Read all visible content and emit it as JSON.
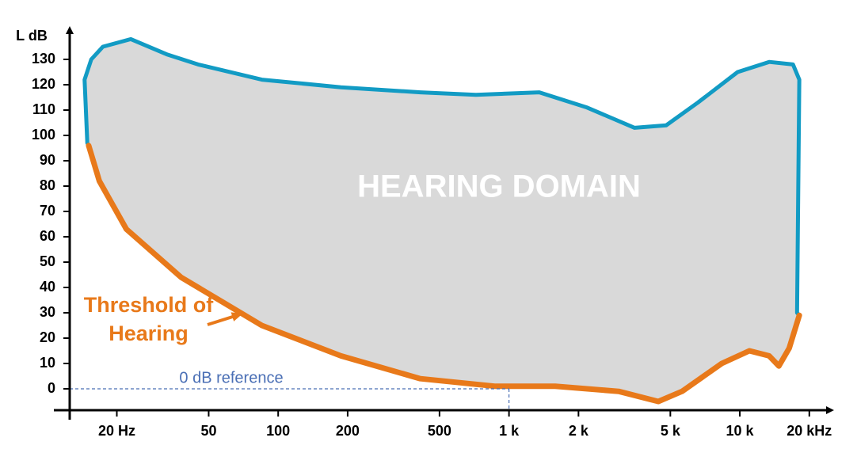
{
  "chart_data": {
    "type": "area",
    "ylabel": "L dB",
    "annotations": {
      "domain": "HEARING DOMAIN",
      "reference": "0 dB reference"
    },
    "xscale": "log",
    "xlim": [
      12.5,
      26000
    ],
    "ylim": [
      -8,
      142
    ],
    "xticks": [
      {
        "value": 20,
        "label": "20 Hz"
      },
      50,
      100,
      200,
      500,
      {
        "value": 1000,
        "label": "1 k"
      },
      {
        "value": 2000,
        "label": "2 k"
      },
      {
        "value": 5000,
        "label": "5 k"
      },
      {
        "value": 10000,
        "label": "10 k"
      },
      {
        "value": 20000,
        "label": "20 kHz"
      }
    ],
    "yticks": [
      0,
      10,
      20,
      30,
      40,
      50,
      60,
      70,
      80,
      90,
      100,
      110,
      120,
      130
    ],
    "reference": {
      "x": 1000,
      "y": 0
    },
    "fill": "#d9d9d9",
    "series": [
      {
        "color": "#129bc4",
        "x": [
          14.9,
          14.5,
          15.5,
          17.4,
          23,
          32.9,
          45,
          85,
          187,
          413,
          719,
          1353,
          2178,
          3500,
          4800,
          6590,
          9780,
          13400,
          17000,
          18100,
          17700
        ],
        "values": [
          97,
          122,
          130,
          135,
          138,
          132,
          128,
          122,
          119,
          117,
          116,
          117,
          111,
          103,
          104,
          113,
          125,
          129,
          128,
          122,
          30
        ]
      },
      {
        "name": "Threshold of Hearing",
        "color": "#e8791a",
        "x": [
          15.1,
          16.8,
          22,
          38,
          85,
          187,
          413,
          875,
          1585,
          2985,
          4435,
          5620,
          8350,
          11000,
          13400,
          14760,
          16360,
          18100
        ],
        "values": [
          96,
          82,
          63,
          44,
          25,
          13,
          4,
          1,
          1,
          -1,
          -5,
          -1,
          10,
          15,
          13,
          9,
          16,
          29
        ]
      }
    ]
  }
}
